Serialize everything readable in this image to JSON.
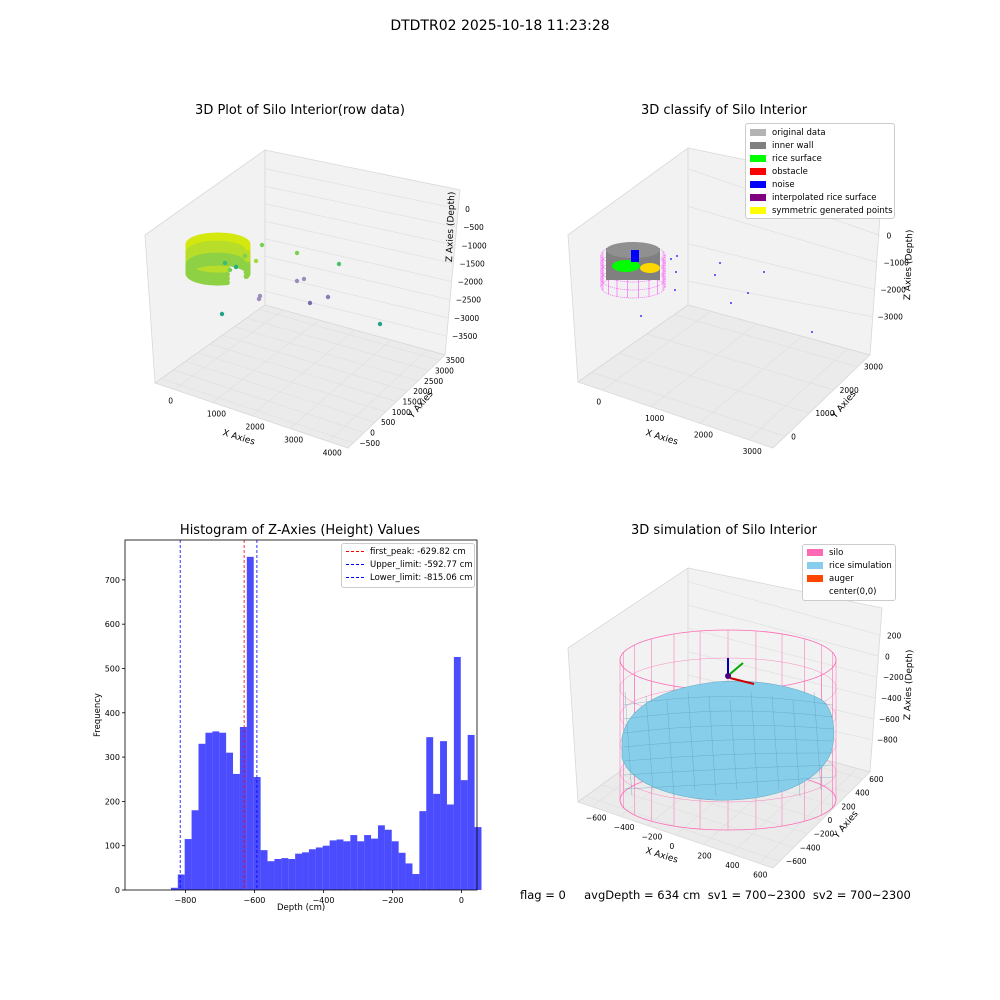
{
  "figure_title": "DTDTR02 2025-10-18 11:23:28",
  "footer": "flag = 0     avgDepth = 634 cm  sv1 = 700~2300  sv2 = 700~2300",
  "chart_data": [
    {
      "type": "scatter",
      "title": "3D Plot of Silo Interior(row data)",
      "xlabel": "X Axies",
      "ylabel": "Y Axies",
      "zlabel": "Z Axies (Depth)",
      "x_ticks": [
        "0",
        "1000",
        "2000",
        "3000",
        "4000"
      ],
      "y_ticks": [
        "−500",
        "0",
        "500",
        "1000",
        "1500",
        "2000",
        "2500",
        "3000",
        "3500"
      ],
      "z_ticks": [
        "0",
        "−500",
        "−1000",
        "−1500",
        "−2000",
        "−2500",
        "−3000",
        "−3500"
      ],
      "grid": true
    },
    {
      "type": "scatter",
      "title": "3D classify of Silo Interior",
      "xlabel": "X Axies",
      "ylabel": "Y Axies",
      "zlabel": "Z Axies (Depth)",
      "x_ticks": [
        "0",
        "1000",
        "2000",
        "3000"
      ],
      "y_ticks": [
        "0",
        "1000",
        "2000",
        "3000"
      ],
      "z_ticks": [
        "0",
        "−1000",
        "−2000",
        "−3000"
      ],
      "legend_position": "top-right",
      "legend": [
        {
          "label": "original data",
          "color": "#b3b3b3"
        },
        {
          "label": "inner wall",
          "color": "#808080"
        },
        {
          "label": "rice surface",
          "color": "#00ff00"
        },
        {
          "label": "obstacle",
          "color": "#ff0000"
        },
        {
          "label": "noise",
          "color": "#0000ff"
        },
        {
          "label": "interpolated rice surface",
          "color": "#800080"
        },
        {
          "label": "symmetric generated points",
          "color": "#ffff00"
        }
      ],
      "grid": true
    },
    {
      "type": "bar",
      "title": "Histogram of Z-Axies (Height) Values",
      "xlabel": "Depth (cm)",
      "ylabel": "Frequency",
      "xlim": [
        -975,
        45
      ],
      "ylim": [
        0,
        790
      ],
      "x_ticks": [
        -800,
        -600,
        -400,
        -200,
        0
      ],
      "x_tick_labels": [
        "−800",
        "−600",
        "−400",
        "−200",
        "0"
      ],
      "y_ticks": [
        0,
        100,
        200,
        300,
        400,
        500,
        600,
        700
      ],
      "y_tick_labels": [
        "0",
        "100",
        "200",
        "300",
        "400",
        "500",
        "600",
        "700"
      ],
      "bar_color": "#0000ff",
      "bin_start": -842,
      "bin_width": 20,
      "values": [
        5,
        35,
        115,
        180,
        330,
        355,
        358,
        355,
        310,
        262,
        368,
        752,
        255,
        90,
        65,
        70,
        72,
        70,
        82,
        85,
        92,
        96,
        100,
        112,
        114,
        110,
        124,
        110,
        124,
        116,
        146,
        136,
        110,
        84,
        60,
        36,
        178,
        345,
        217,
        336,
        193,
        526,
        248,
        350,
        142
      ],
      "vlines": [
        {
          "label": "first_peak: -629.82 cm",
          "x": -629.82,
          "color": "#ff0000"
        },
        {
          "label": "Upper_limit: -592.77 cm",
          "x": -592.77,
          "color": "#0000ff"
        },
        {
          "label": "Lower_limit: -815.06 cm",
          "x": -815.06,
          "color": "#0000ff"
        }
      ],
      "legend_position": "top-right"
    },
    {
      "type": "surface",
      "title": "3D simulation of Silo Interior",
      "xlabel": "X Axies",
      "ylabel": "Y Axies",
      "zlabel": "Z Axies (Depth)",
      "x_ticks": [
        "−600",
        "−400",
        "−200",
        "0",
        "200",
        "400",
        "600"
      ],
      "y_ticks": [
        "−600",
        "−400",
        "−200",
        "0",
        "200",
        "400",
        "600"
      ],
      "z_ticks": [
        "200",
        "0",
        "−200",
        "−400",
        "−600",
        "−800"
      ],
      "legend_position": "top-right",
      "legend": [
        {
          "label": "silo",
          "color": "#ff69b4"
        },
        {
          "label": "rice simulation",
          "color": "#87ceeb"
        },
        {
          "label": "auger",
          "color": "#ff4500"
        },
        {
          "label": "center(0,0)",
          "color": "#ffffff"
        }
      ],
      "grid": true
    }
  ]
}
